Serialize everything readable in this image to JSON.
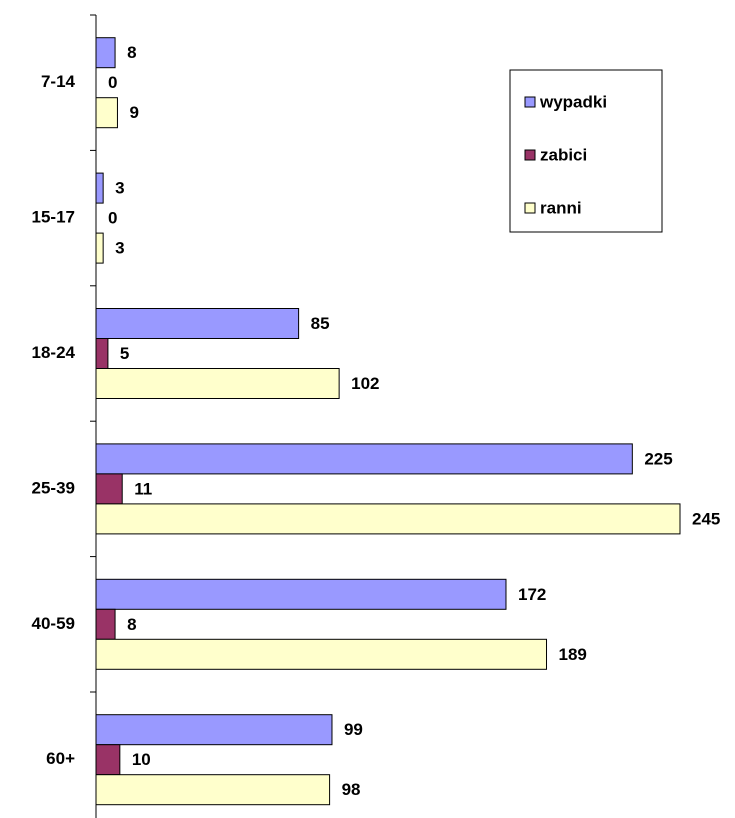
{
  "chart_data": {
    "type": "hbar",
    "categories": [
      "7-14",
      "15-17",
      "18-24",
      "25-39",
      "40-59",
      "60+"
    ],
    "series": [
      {
        "name": "wypadki",
        "color": "#9999ff",
        "values": [
          8,
          3,
          85,
          225,
          172,
          99
        ]
      },
      {
        "name": "zabici",
        "color": "#993366",
        "values": [
          0,
          0,
          5,
          11,
          8,
          10
        ]
      },
      {
        "name": "ranni",
        "color": "#ffffcc",
        "values": [
          9,
          3,
          102,
          245,
          189,
          98
        ]
      }
    ],
    "legend": "top-right"
  }
}
